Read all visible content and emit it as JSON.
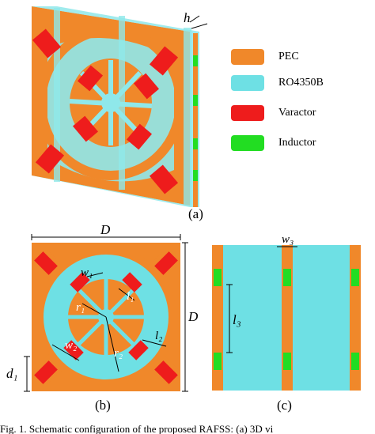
{
  "figure": {
    "panel_labels": {
      "a": "(a)",
      "b": "(b)",
      "c": "(c)"
    },
    "dimension_labels": {
      "h": "h",
      "D_top": "D",
      "D_side": "D",
      "w1": "w₁",
      "w2": "w₂",
      "w3": "w₃",
      "r1": "r₁",
      "r2": "r₂",
      "l1": "l₁",
      "l2": "l₂",
      "l3": "l₃",
      "d1": "d₁"
    },
    "legend": [
      {
        "label": "PEC",
        "color": "#F0882A"
      },
      {
        "label": "RO4350B",
        "color": "#6EE0E4"
      },
      {
        "label": "Varactor",
        "color": "#EE1C1C"
      },
      {
        "label": "Inductor",
        "color": "#22DD22"
      }
    ],
    "caption_fragment": "Fig. 1. Schematic configuration of the proposed RAFSS: (a) 3D vi"
  }
}
